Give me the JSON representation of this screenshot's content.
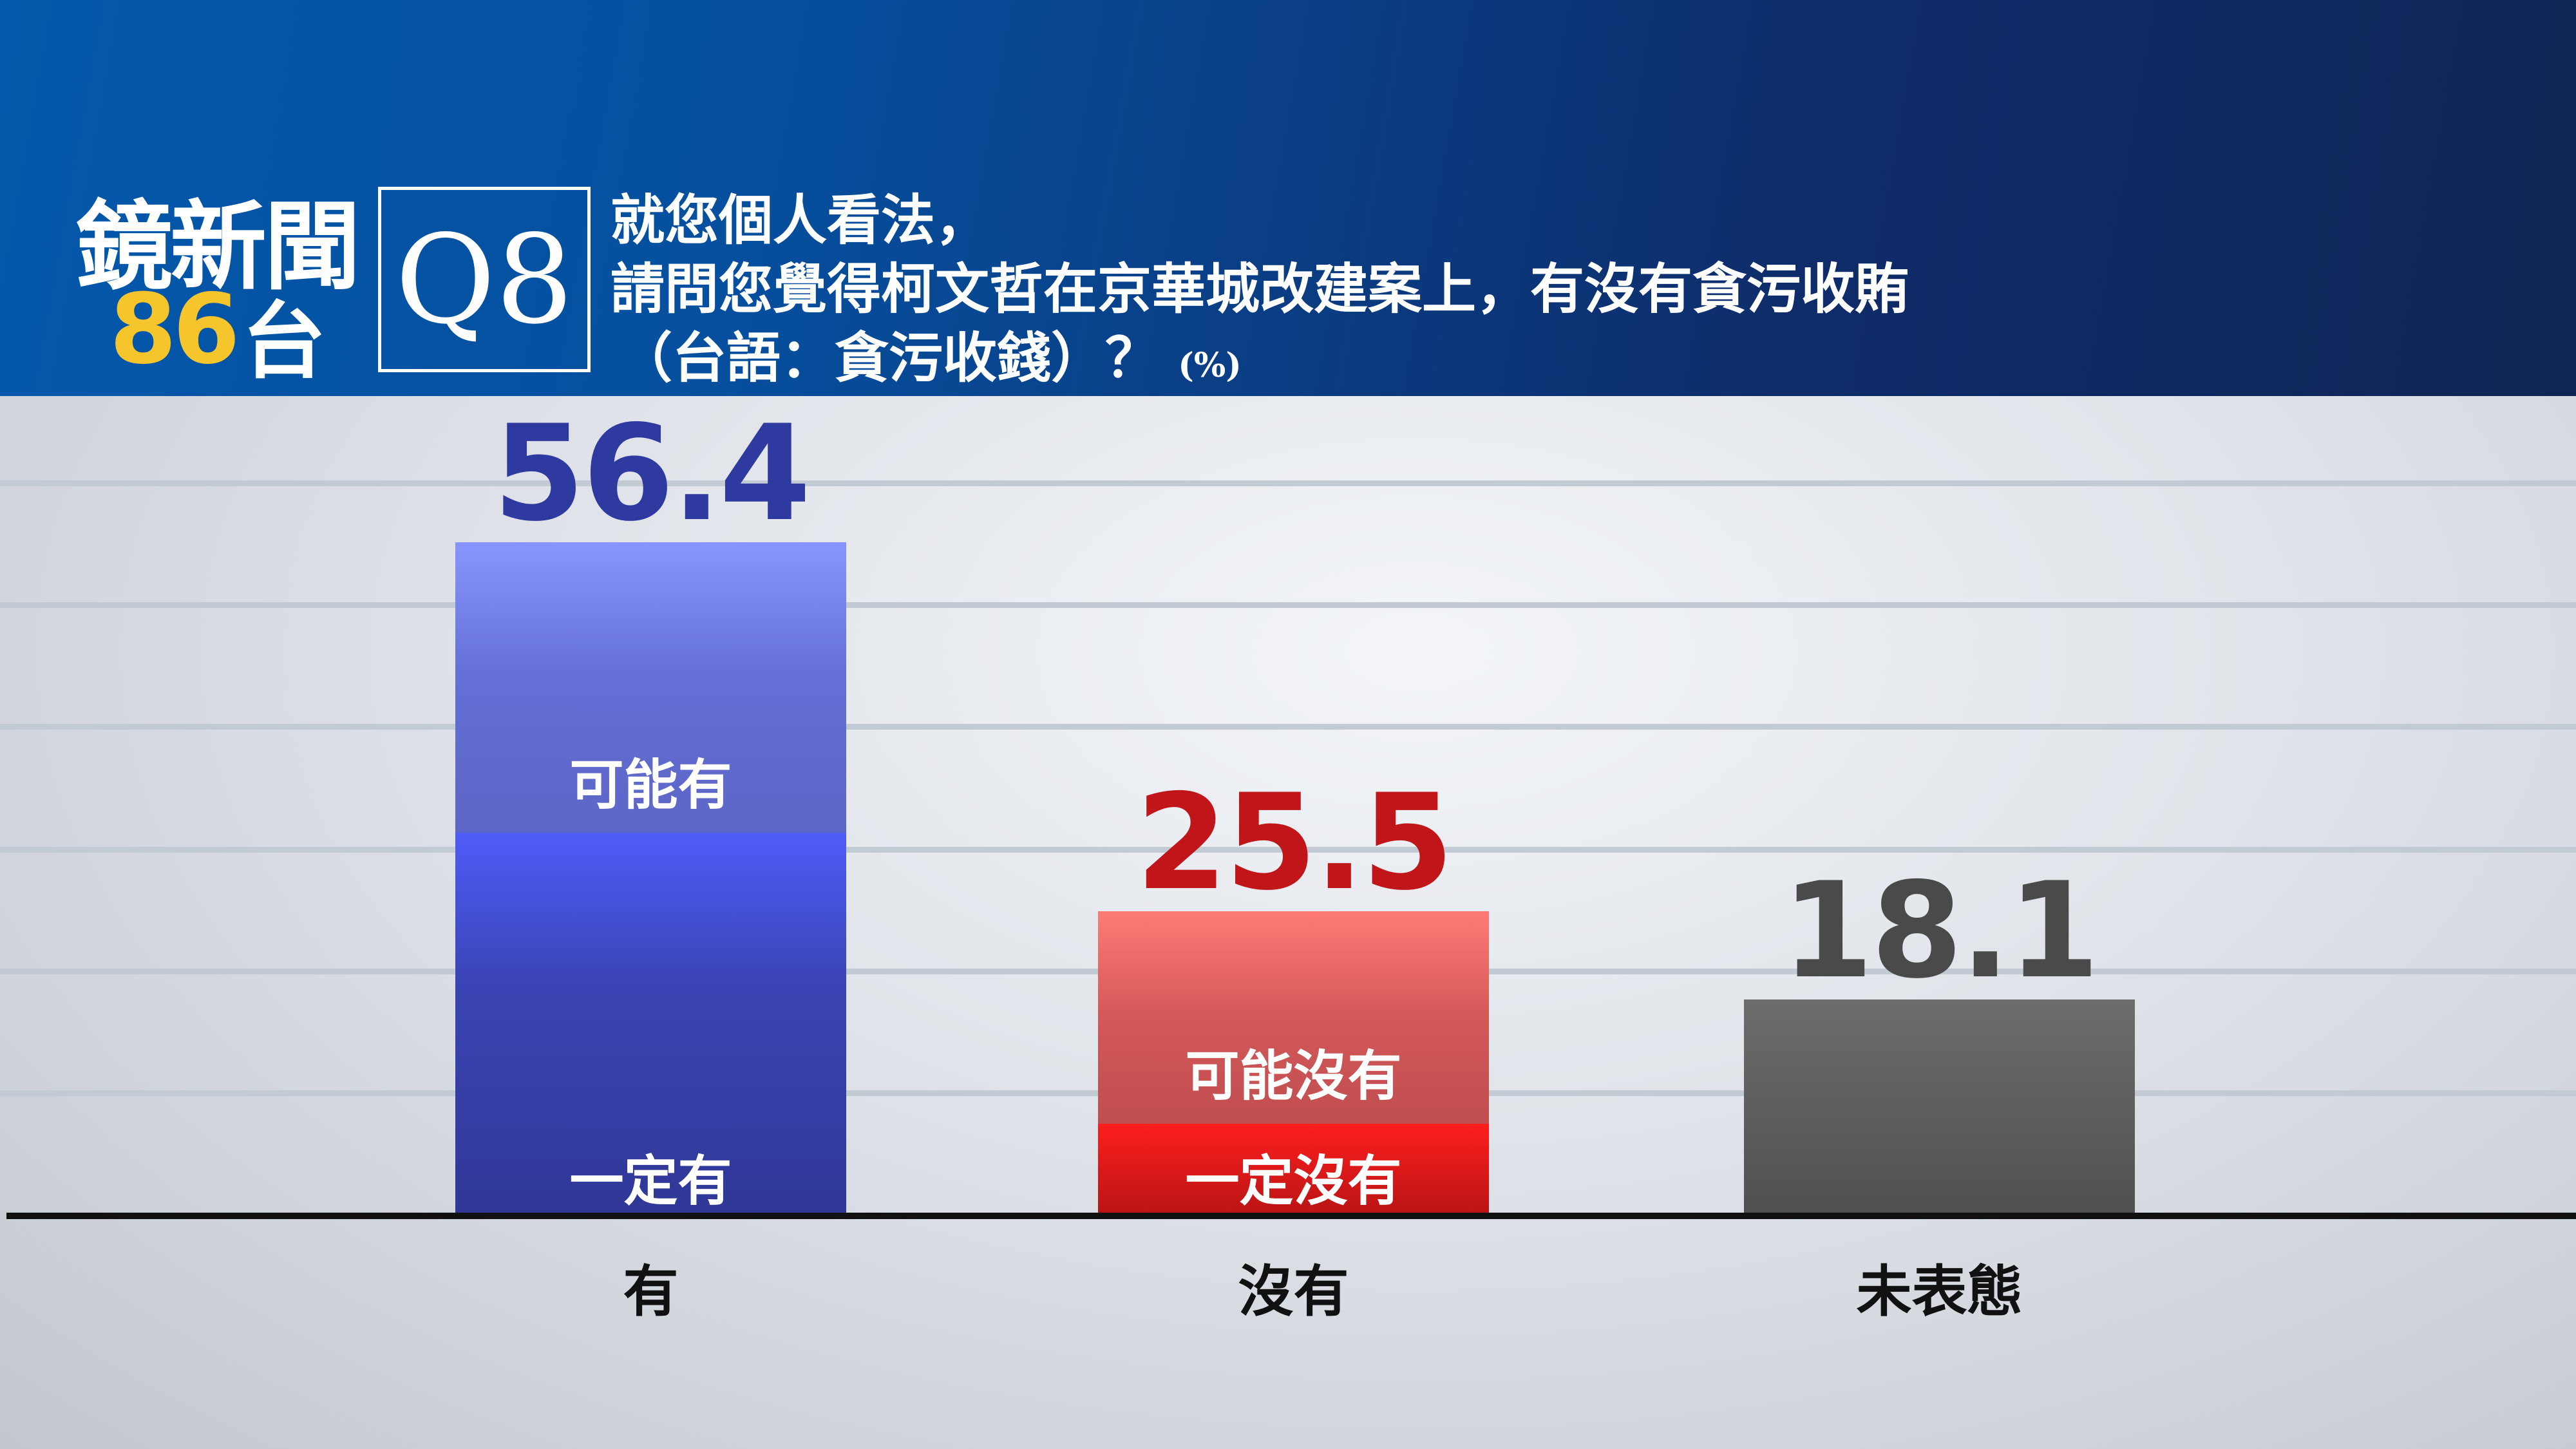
{
  "header": {
    "logo_top": "鏡新聞",
    "logo_number": "86",
    "logo_suffix": "台",
    "question_number": "Q8",
    "question_lines": [
      "就您個人看法，",
      "請問您覺得柯文哲在京華城改建案上，有沒有貪污收賄",
      "（台語：貪污收錢）？"
    ],
    "unit": "(%)"
  },
  "chart_data": {
    "type": "bar",
    "stacked": true,
    "categories": [
      "有",
      "沒有",
      "未表態"
    ],
    "values": [
      56.4,
      25.5,
      18.1
    ],
    "value_colors": [
      "#2e3aa0",
      "#c0161a",
      "#4a4a4a"
    ],
    "segments": [
      [
        {
          "label": "一定有",
          "value": 32.1,
          "color": "#3340b0"
        },
        {
          "label": "可能有",
          "value": 24.3,
          "color": "#6470d6"
        }
      ],
      [
        {
          "label": "一定沒有",
          "value": 7.7,
          "color": "#d01818"
        },
        {
          "label": "可能沒有",
          "value": 17.8,
          "color": "#e06060"
        }
      ],
      [
        {
          "label": "",
          "value": 18.1,
          "color": "#5a5a5a"
        }
      ]
    ],
    "ylim": [
      0,
      60
    ],
    "grid": true
  }
}
